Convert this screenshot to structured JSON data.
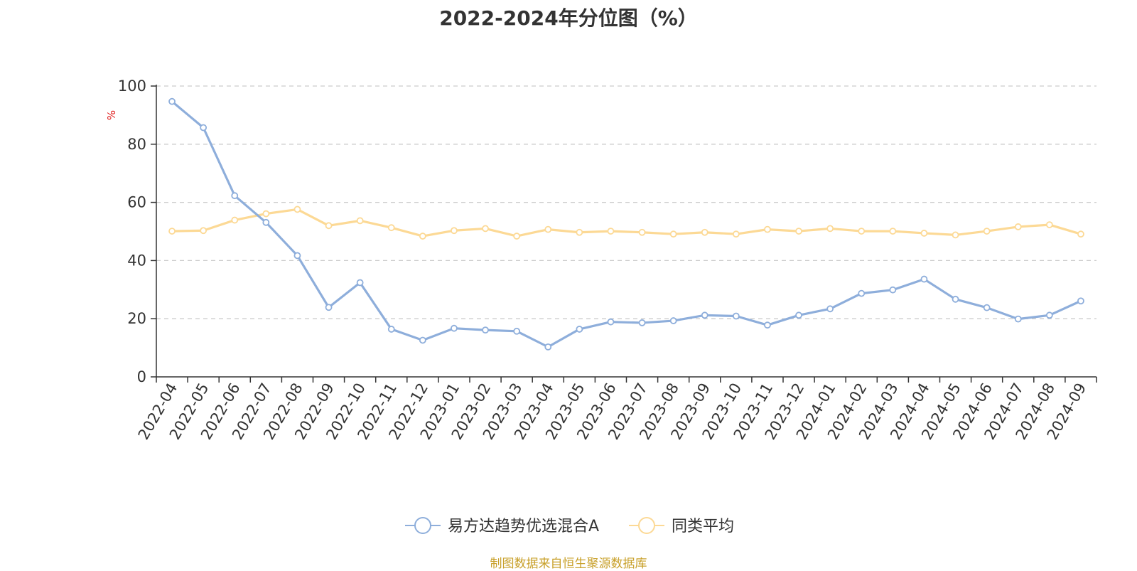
{
  "chart_data": {
    "type": "line",
    "title": "2022-2024年分位图（%）",
    "ylabel": "%",
    "xlabel": "",
    "ylim": [
      0,
      100
    ],
    "yticks": [
      0,
      20,
      40,
      60,
      80,
      100
    ],
    "grid": true,
    "legend_position": "bottom-center",
    "x": [
      "2022-04",
      "2022-05",
      "2022-06",
      "2022-07",
      "2022-08",
      "2022-09",
      "2022-10",
      "2022-11",
      "2022-12",
      "2023-01",
      "2023-02",
      "2023-03",
      "2023-04",
      "2023-05",
      "2023-06",
      "2023-07",
      "2023-08",
      "2023-09",
      "2023-10",
      "2023-11",
      "2023-12",
      "2024-01",
      "2024-02",
      "2024-03",
      "2024-04",
      "2024-05",
      "2024-06",
      "2024-07",
      "2024-08",
      "2024-09"
    ],
    "series": [
      {
        "name": "易方达趋势优选混合A",
        "color": "#8eaedb",
        "values": [
          94.7,
          85.7,
          62.3,
          53.1,
          41.7,
          23.9,
          32.4,
          16.4,
          12.6,
          16.7,
          16.1,
          15.7,
          10.3,
          16.4,
          18.9,
          18.6,
          19.3,
          21.2,
          20.9,
          17.8,
          21.2,
          23.4,
          28.7,
          29.9,
          33.6,
          26.7,
          23.8,
          19.9,
          21.2,
          26.1
        ]
      },
      {
        "name": "同类平均",
        "color": "#fcd995",
        "values": [
          50.1,
          50.3,
          53.9,
          56.1,
          57.6,
          52.0,
          53.7,
          51.3,
          48.4,
          50.3,
          51.0,
          48.4,
          50.7,
          49.7,
          50.1,
          49.7,
          49.1,
          49.7,
          49.1,
          50.7,
          50.1,
          51.0,
          50.1,
          50.1,
          49.4,
          48.8,
          50.1,
          51.6,
          52.3,
          49.1
        ]
      }
    ]
  },
  "source_text": "制图数据来自恒生聚源数据库",
  "source_color": "#c8a02a",
  "ylabel_color": "#e02020"
}
